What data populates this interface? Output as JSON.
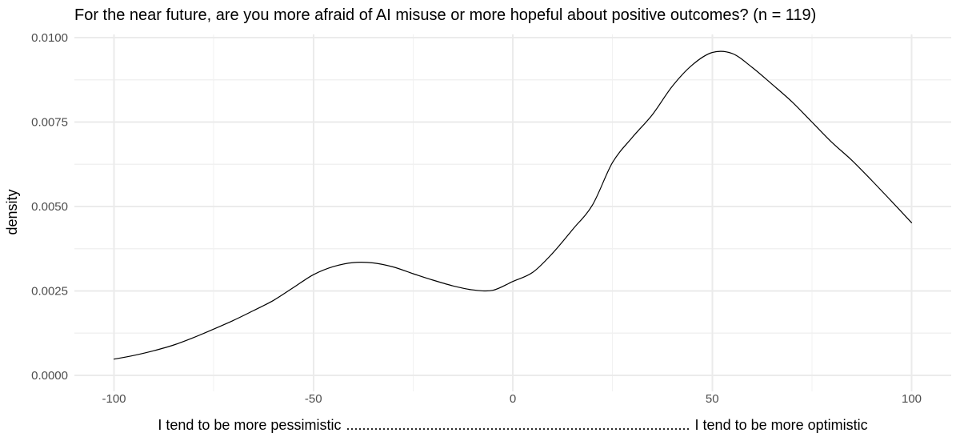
{
  "title": "For the near future, are you more afraid of AI misuse or more hopeful about positive outcomes? (n = 119)",
  "axes": {
    "y_title": "density",
    "x_label": {
      "left": "I tend to be more pessimistic",
      "dots": "......................................................................................",
      "right": "I tend to be more optimistic"
    }
  },
  "style": {
    "background": "#ffffff",
    "grid_major_color": "#ebebeb",
    "grid_minor_color": "#f1f1f1",
    "curve_color": "#000000",
    "tick_label_color": "#4d4d4d",
    "title_color": "#000000"
  },
  "chart_data": {
    "type": "line",
    "subtype": "density-curve",
    "title": "For the near future, are you more afraid of AI misuse or more hopeful about positive outcomes? (n = 119)",
    "n": 119,
    "xlabel": "I tend to be more pessimistic .................... I tend to be more optimistic",
    "ylabel": "density",
    "xlim": [
      -100,
      100
    ],
    "ylim": [
      0,
      0.01
    ],
    "x_ticks": [
      -100,
      -50,
      0,
      50,
      100
    ],
    "x_tick_labels": [
      "-100",
      "-50",
      "0",
      "50",
      "100"
    ],
    "y_ticks": [
      0,
      0.0025,
      0.005,
      0.0075,
      0.01
    ],
    "y_tick_labels": [
      "0.0000",
      "0.0025",
      "0.0050",
      "0.0075",
      "0.0100"
    ],
    "grid": {
      "major": true,
      "minor": true
    },
    "legend": "none",
    "series": [
      {
        "name": "density",
        "x": [
          -100,
          -95,
          -90,
          -85,
          -80,
          -75,
          -70,
          -65,
          -60,
          -55,
          -50,
          -45,
          -40,
          -35,
          -30,
          -25,
          -20,
          -15,
          -10,
          -5,
          0,
          5,
          10,
          15,
          20,
          25,
          30,
          35,
          40,
          45,
          50,
          55,
          60,
          65,
          70,
          75,
          80,
          85,
          90,
          95,
          100
        ],
        "y": [
          0.00048,
          0.00059,
          0.00073,
          0.0009,
          0.00112,
          0.00137,
          0.00163,
          0.00192,
          0.00222,
          0.0026,
          0.00298,
          0.00322,
          0.00334,
          0.00333,
          0.00321,
          0.00301,
          0.00282,
          0.00265,
          0.00253,
          0.00252,
          0.00278,
          0.00305,
          0.00362,
          0.00432,
          0.00505,
          0.0063,
          0.00705,
          0.00772,
          0.00856,
          0.00919,
          0.00956,
          0.00953,
          0.00912,
          0.00862,
          0.0081,
          0.0075,
          0.0069,
          0.00637,
          0.00577,
          0.00515,
          0.00452
        ]
      }
    ],
    "features": {
      "local_max": {
        "x": -42,
        "y": 0.0033
      },
      "local_min": {
        "x": -8,
        "y": 0.0025
      },
      "peak": {
        "x": 51,
        "y": 0.0096
      },
      "start": {
        "x": -100,
        "y": 0.0005
      },
      "end": {
        "x": 100,
        "y": 0.0045
      }
    }
  }
}
